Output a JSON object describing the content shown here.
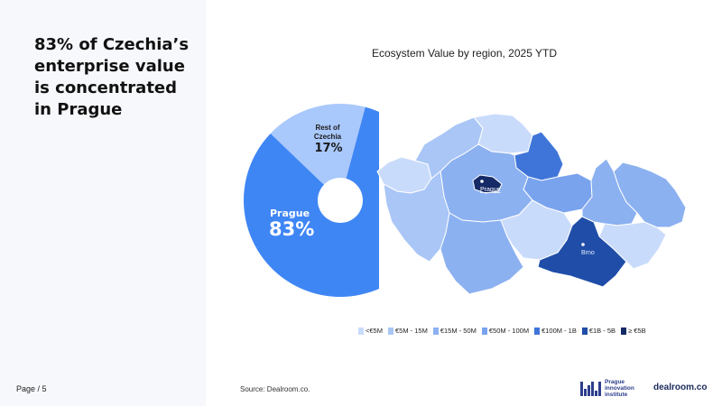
{
  "headline": [
    "83% of Czechia’s",
    "enterprise value",
    "is concentrated",
    "in Prague"
  ],
  "page_label": "Page / 5",
  "chart_title": "Ecosystem Value by region, 2025 YTD",
  "chart_data": [
    {
      "type": "pie",
      "slices": [
        {
          "label": "Prague",
          "value": 83,
          "value_label": "83%",
          "color": "#3f86f5"
        },
        {
          "label": "Rest of Czechia",
          "value": 17,
          "value_label": "17%",
          "color": "#a9c8fb"
        }
      ]
    }
  ],
  "map": {
    "city_labels": {
      "prague": "Prague",
      "brno": "Brno"
    }
  },
  "legend": [
    {
      "label": "<€5M",
      "color": "#c9dbfb"
    },
    {
      "label": "€5M - 15M",
      "color": "#a9c6f6"
    },
    {
      "label": "€15M - 50M",
      "color": "#8cb1f1"
    },
    {
      "label": "€50M - 100M",
      "color": "#7aa3ee"
    },
    {
      "label": "€100M - 1B",
      "color": "#3f75d8"
    },
    {
      "label": "€1B - 5B",
      "color": "#1f4da8"
    },
    {
      "label": "≥ €5B",
      "color": "#152a66"
    }
  ],
  "source": "Source:  Dealroom.co.",
  "logos": {
    "pii": "Prague innovation institute",
    "dealroom": "dealroom.co"
  },
  "colors": {
    "left_panel": "#f7f8fc",
    "prague_slice": "#3f86f5",
    "rest_slice": "#a9c8fb"
  }
}
